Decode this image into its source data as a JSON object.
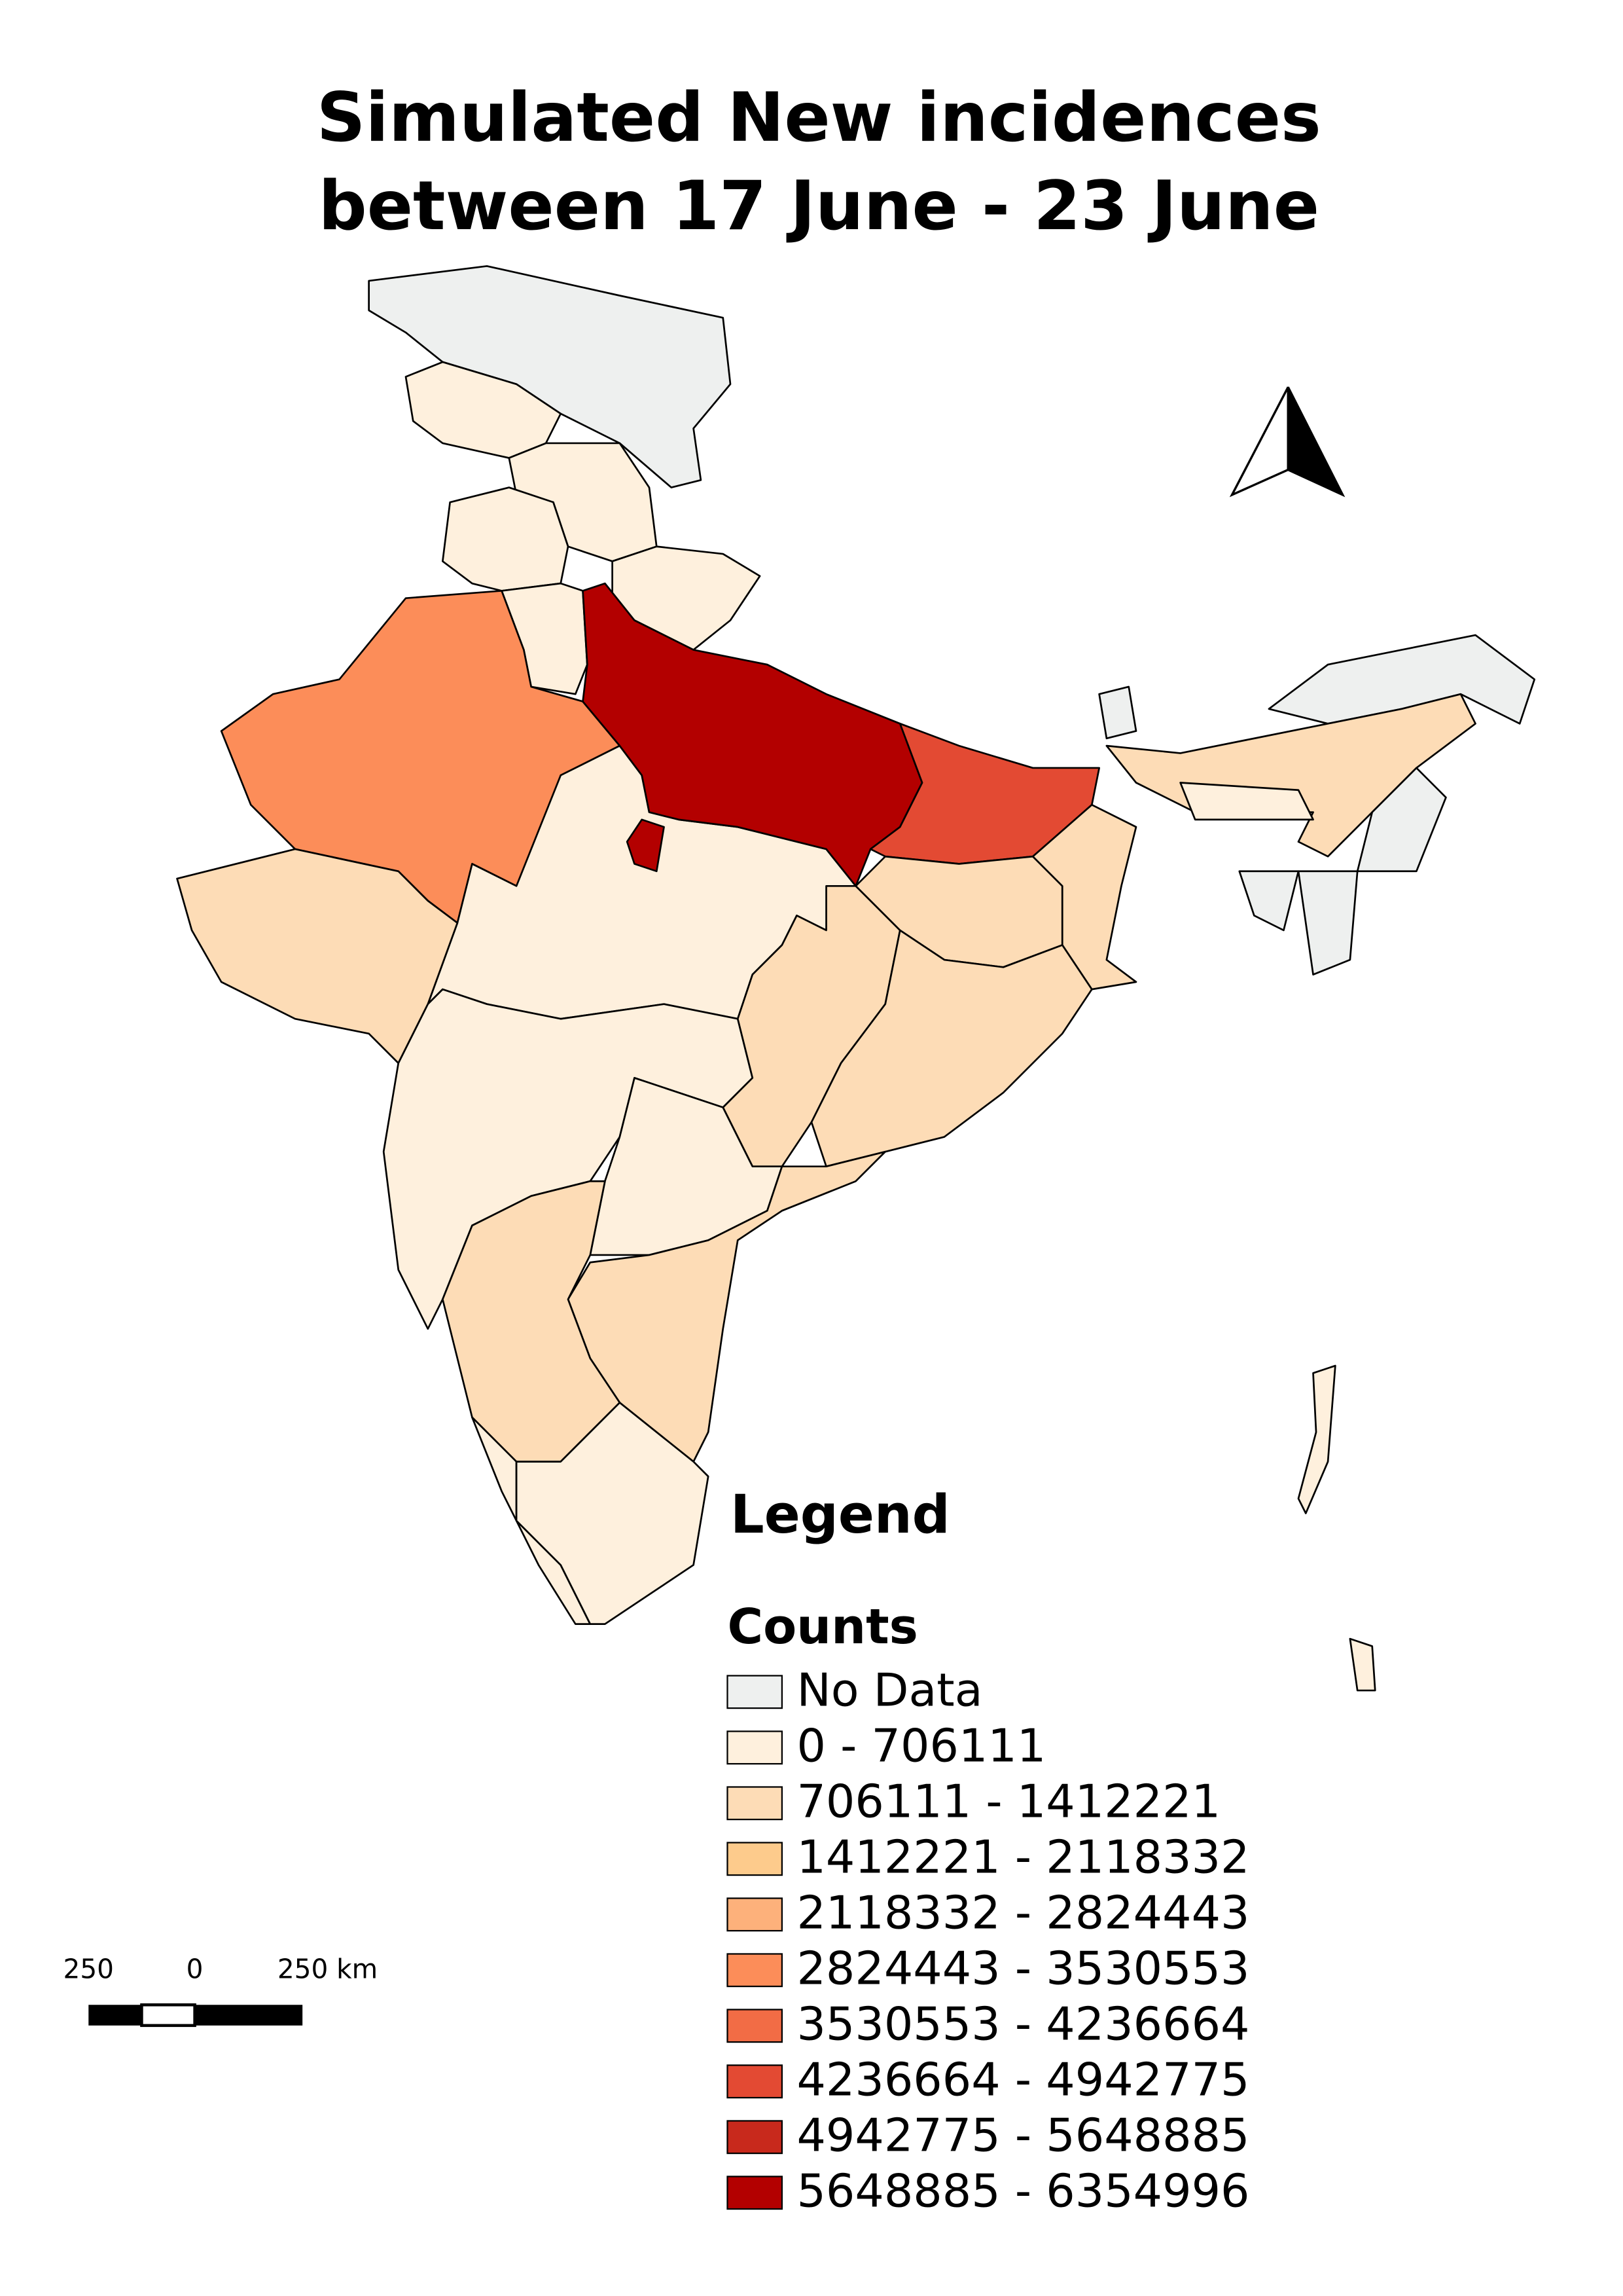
{
  "map": {
    "title_lines": [
      "Simulated New incidences",
      "between 17 June - 23 June"
    ],
    "legend": {
      "title": "Legend",
      "subtitle": "Counts",
      "entries": [
        {
          "label": "No Data",
          "color": "#eef0ef"
        },
        {
          "label": " 0 - 706111",
          "color": "#fef0dd"
        },
        {
          "label": "706111 - 1412221",
          "color": "#fddcb6"
        },
        {
          "label": "1412221 - 2118332",
          "color": "#fdcb8c"
        },
        {
          "label": "2118332 - 2824443",
          "color": "#fdb17b"
        },
        {
          "label": "2824443 - 3530553",
          "color": "#fc8d59"
        },
        {
          "label": "3530553 - 4236664",
          "color": "#f26c45"
        },
        {
          "label": "4236664 - 4942775",
          "color": "#e34a33"
        },
        {
          "label": "4942775 - 5648885",
          "color": "#c8291c"
        },
        {
          "label": "5648885 - 6354996",
          "color": "#b30000"
        }
      ]
    },
    "scale_bar": {
      "labels": [
        "250",
        "0",
        "250 km"
      ]
    }
  }
}
